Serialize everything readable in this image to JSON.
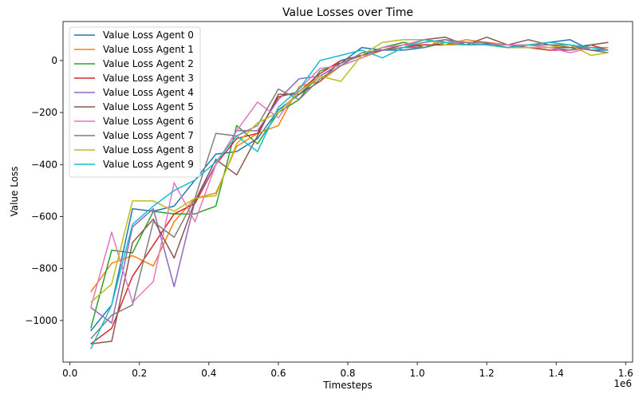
{
  "chart_data": {
    "type": "line",
    "title": "Value Losses over Time",
    "xlabel": "Timesteps",
    "ylabel": "Value Loss",
    "x_offset_text": "1e6",
    "xlim": [
      -0.02,
      1.62
    ],
    "ylim": [
      -1160,
      150
    ],
    "x_ticks": [
      0.0,
      0.2,
      0.4,
      0.6,
      0.8,
      1.0,
      1.2,
      1.4,
      1.6
    ],
    "x_tick_labels": [
      "0.0",
      "0.2",
      "0.4",
      "0.6",
      "0.8",
      "1.0",
      "1.2",
      "1.4",
      "1.6"
    ],
    "y_ticks": [
      -1000,
      -800,
      -600,
      -400,
      -200,
      0
    ],
    "y_tick_labels": [
      "−1000",
      "−800",
      "−600",
      "−400",
      "−200",
      "0"
    ],
    "legend_position": "top-left",
    "grid": false,
    "x": [
      0.06,
      0.12,
      0.18,
      0.24,
      0.3,
      0.36,
      0.42,
      0.48,
      0.54,
      0.6,
      0.66,
      0.72,
      0.78,
      0.84,
      0.9,
      0.96,
      1.02,
      1.08,
      1.14,
      1.2,
      1.26,
      1.32,
      1.38,
      1.44,
      1.5,
      1.55
    ],
    "series": [
      {
        "name": "Value Loss Agent 0",
        "color": "#1f77b4",
        "values": [
          -1040,
          -940,
          -570,
          -580,
          -560,
          -460,
          -360,
          -350,
          -300,
          -190,
          -130,
          -60,
          -10,
          50,
          40,
          40,
          50,
          70,
          60,
          65,
          50,
          60,
          70,
          80,
          40,
          40
        ]
      },
      {
        "name": "Value Loss Agent 1",
        "color": "#ff7f0e",
        "values": [
          -890,
          -780,
          -750,
          -790,
          -620,
          -530,
          -510,
          -330,
          -280,
          -250,
          -100,
          -80,
          -20,
          10,
          40,
          60,
          60,
          60,
          80,
          70,
          60,
          60,
          50,
          50,
          50,
          50
        ]
      },
      {
        "name": "Value Loss Agent 2",
        "color": "#2ca02c",
        "values": [
          -1030,
          -730,
          -740,
          -580,
          -590,
          -590,
          -560,
          -250,
          -320,
          -200,
          -150,
          -40,
          -10,
          20,
          50,
          70,
          50,
          70,
          60,
          60,
          50,
          50,
          50,
          50,
          40,
          30
        ]
      },
      {
        "name": "Value Loss Agent 3",
        "color": "#d62728",
        "values": [
          -1090,
          -1030,
          -830,
          -710,
          -590,
          -550,
          -400,
          -300,
          -280,
          -140,
          -120,
          -50,
          0,
          20,
          40,
          50,
          60,
          60,
          70,
          60,
          60,
          50,
          40,
          40,
          60,
          40
        ]
      },
      {
        "name": "Value Loss Agent 4",
        "color": "#9467bd",
        "values": [
          -950,
          -1010,
          -640,
          -570,
          -870,
          -540,
          -400,
          -270,
          -270,
          -150,
          -70,
          -60,
          -10,
          20,
          40,
          50,
          70,
          80,
          60,
          60,
          50,
          50,
          50,
          40,
          50,
          40
        ]
      },
      {
        "name": "Value Loss Agent 5",
        "color": "#8c564b",
        "values": [
          -1090,
          -1080,
          -700,
          -610,
          -760,
          -540,
          -380,
          -440,
          -290,
          -130,
          -130,
          -80,
          0,
          20,
          40,
          60,
          80,
          90,
          60,
          90,
          60,
          80,
          60,
          50,
          60,
          70
        ]
      },
      {
        "name": "Value Loss Agent 6",
        "color": "#e377c2",
        "values": [
          -950,
          -660,
          -930,
          -850,
          -470,
          -620,
          -400,
          -270,
          -160,
          -220,
          -110,
          -30,
          -20,
          10,
          50,
          60,
          80,
          70,
          70,
          60,
          60,
          60,
          50,
          30,
          50,
          40
        ]
      },
      {
        "name": "Value Loss Agent 7",
        "color": "#7f7f7f",
        "values": [
          -1070,
          -980,
          -940,
          -620,
          -680,
          -530,
          -280,
          -290,
          -250,
          -110,
          -150,
          -70,
          -20,
          30,
          40,
          50,
          50,
          80,
          70,
          70,
          50,
          60,
          60,
          60,
          40,
          30
        ]
      },
      {
        "name": "Value Loss Agent 8",
        "color": "#bcbd22",
        "values": [
          -930,
          -860,
          -540,
          -540,
          -580,
          -530,
          -520,
          -320,
          -240,
          -200,
          -120,
          -60,
          -80,
          20,
          70,
          80,
          80,
          60,
          60,
          60,
          50,
          50,
          50,
          60,
          20,
          30
        ]
      },
      {
        "name": "Value Loss Agent 9",
        "color": "#17becf",
        "values": [
          -1110,
          -940,
          -630,
          -560,
          -500,
          -460,
          -390,
          -290,
          -350,
          -180,
          -110,
          0,
          20,
          40,
          10,
          50,
          80,
          70,
          60,
          60,
          50,
          60,
          70,
          60,
          50,
          40
        ]
      }
    ]
  }
}
